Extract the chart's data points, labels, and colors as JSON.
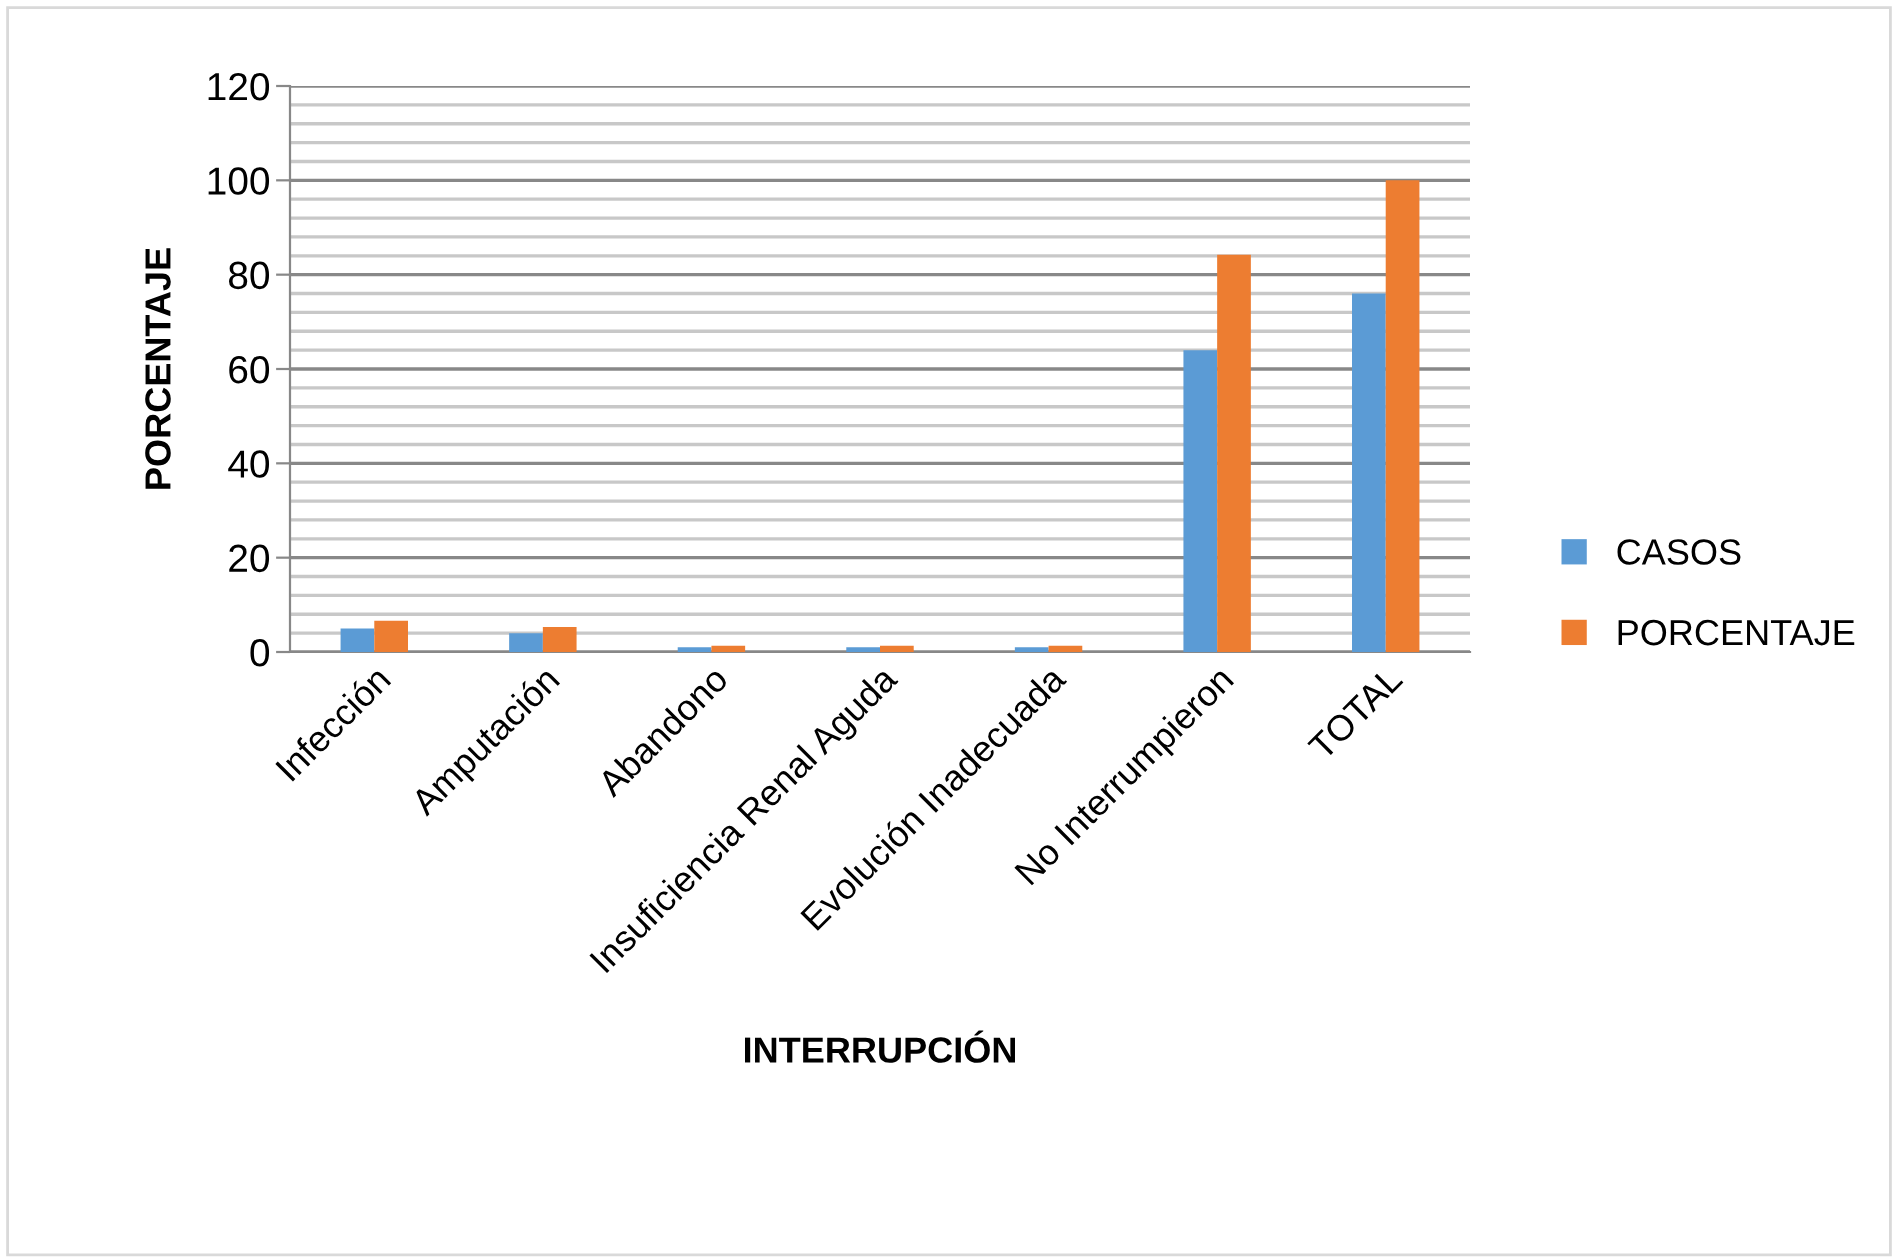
{
  "chart_data": {
    "type": "bar",
    "xlabel": "INTERRUPCIÓN",
    "ylabel": "PORCENTAJE",
    "categories": [
      "Infección",
      "Amputación",
      "Abandono",
      "Insuficiencia Renal Aguda",
      "Evolución Inadecuada",
      "No Interrumpieron",
      "TOTAL"
    ],
    "series": [
      {
        "name": "CASOS",
        "color": "#5b9bd5",
        "values": [
          5,
          4,
          1,
          1,
          1,
          64,
          76
        ]
      },
      {
        "name": "PORCENTAJE",
        "color": "#ed7d31",
        "values": [
          6.6,
          5.3,
          1.3,
          1.3,
          1.3,
          84.2,
          100
        ]
      }
    ],
    "ylim": [
      0,
      120
    ],
    "yticks": [
      0,
      {
        "value": 4,
        "label": null
      },
      {
        "value": 8,
        "label": null
      },
      {
        "value": 12,
        "label": null
      },
      {
        "value": 16,
        "label": null
      },
      20,
      {
        "value": 24,
        "label": null
      },
      {
        "value": 28,
        "label": null
      },
      {
        "value": 32,
        "label": null
      },
      {
        "value": 36,
        "label": null
      },
      40,
      {
        "value": 44,
        "label": null
      },
      {
        "value": 48,
        "label": null
      },
      {
        "value": 52,
        "label": null
      },
      {
        "value": 56,
        "label": null
      },
      60,
      {
        "value": 64,
        "label": null
      },
      {
        "value": 68,
        "label": null
      },
      {
        "value": 72,
        "label": null
      },
      {
        "value": 76,
        "label": null
      },
      80,
      {
        "value": 84,
        "label": null
      },
      {
        "value": 88,
        "label": null
      },
      {
        "value": 92,
        "label": null
      },
      {
        "value": 96,
        "label": null
      },
      100,
      {
        "value": 104,
        "label": null
      },
      {
        "value": 108,
        "label": null
      },
      {
        "value": 112,
        "label": null
      },
      {
        "value": 116,
        "label": null
      },
      120
    ],
    "grid": "y",
    "legend": "right"
  }
}
